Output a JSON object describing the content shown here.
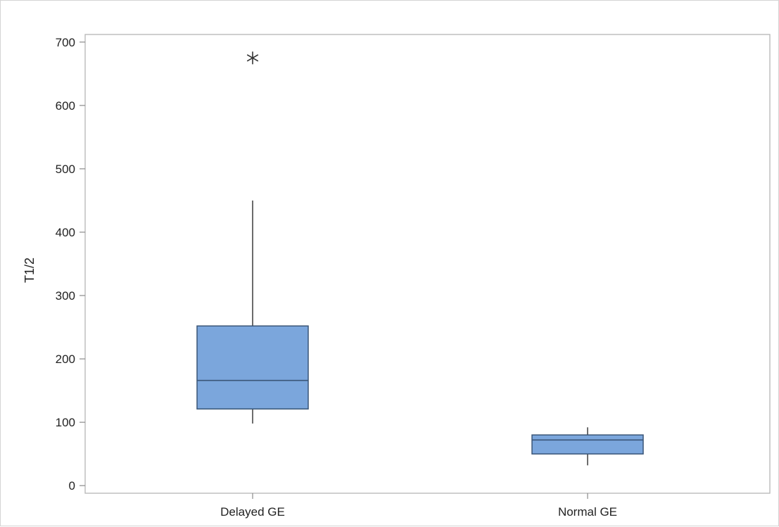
{
  "chart_data": {
    "type": "boxplot",
    "title": "",
    "xlabel": "",
    "ylabel": "T1/2",
    "ylim": [
      -12,
      712
    ],
    "yticks": [
      0,
      100,
      200,
      300,
      400,
      500,
      600,
      700
    ],
    "grid": false,
    "legend": "none",
    "categories": [
      "Delayed GE",
      "Normal GE"
    ],
    "box_color": "#7ba6dc",
    "box_edge_color": "#3a5577",
    "outlier_marker": "asterisk",
    "boxes": [
      {
        "category": "Delayed GE",
        "whisker_low": 98,
        "q1": 121,
        "median": 166,
        "q3": 252,
        "whisker_high": 450,
        "outliers": [
          675
        ]
      },
      {
        "category": "Normal GE",
        "whisker_low": 32,
        "q1": 50,
        "median": 72,
        "q3": 80,
        "whisker_high": 92,
        "outliers": []
      }
    ]
  }
}
